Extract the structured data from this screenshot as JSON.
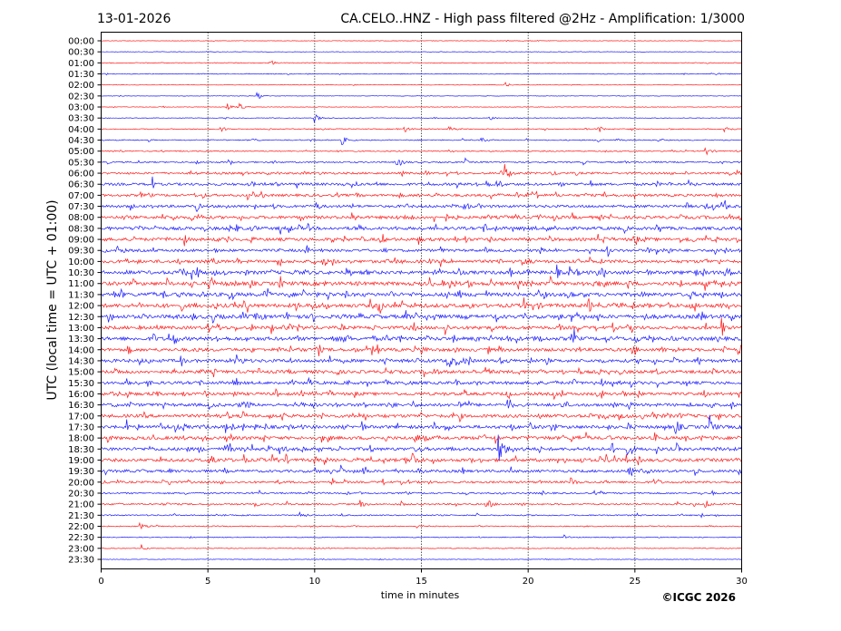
{
  "header": {
    "date": "13-01-2026",
    "title": "CA.CELO..HNZ - High pass filtered @2Hz - Amplification: 1/3000"
  },
  "footer": {
    "copyright": "©ICGC 2026"
  },
  "chart_data": {
    "type": "line",
    "title": "CA.CELO..HNZ - High pass filtered @2Hz - Amplification: 1/3000",
    "xlabel": "time in minutes",
    "ylabel": "UTC (local time = UTC + 01:00)",
    "xlim": [
      0,
      30
    ],
    "x_ticks": [
      "0",
      "5",
      "10",
      "15",
      "20",
      "25",
      "30"
    ],
    "grid": "vertical dotted at every 5 minutes",
    "colors": [
      "#ff0000",
      "#0000ff"
    ],
    "rows": [
      "00:00",
      "00:30",
      "01:00",
      "01:30",
      "02:00",
      "02:30",
      "03:00",
      "03:30",
      "04:00",
      "04:30",
      "05:00",
      "05:30",
      "06:00",
      "06:30",
      "07:00",
      "07:30",
      "08:00",
      "08:30",
      "09:00",
      "09:30",
      "10:00",
      "10:30",
      "11:00",
      "11:30",
      "12:00",
      "12:30",
      "13:00",
      "13:30",
      "14:00",
      "14:30",
      "15:00",
      "15:30",
      "16:00",
      "16:30",
      "17:00",
      "17:30",
      "18:00",
      "18:30",
      "19:00",
      "19:30",
      "20:00",
      "20:30",
      "21:00",
      "21:30",
      "22:00",
      "22:30",
      "23:00",
      "23:30"
    ],
    "relative_noise_level": [
      0.4,
      0.4,
      0.6,
      0.7,
      0.4,
      0.4,
      0.5,
      0.5,
      0.8,
      0.9,
      1.0,
      1.3,
      1.8,
      2.2,
      2.2,
      2.3,
      2.6,
      2.7,
      2.7,
      2.3,
      2.7,
      3.1,
      3.2,
      3.2,
      3.3,
      3.2,
      2.8,
      3.2,
      2.8,
      2.8,
      2.7,
      2.6,
      2.6,
      2.7,
      2.8,
      2.8,
      2.8,
      2.8,
      2.7,
      2.3,
      1.8,
      1.4,
      1.4,
      1.1,
      0.9,
      0.7,
      0.6,
      0.5
    ],
    "events": [
      [
        2,
        7.9,
        3
      ],
      [
        4,
        18.9,
        3
      ],
      [
        5,
        7.3,
        5
      ],
      [
        6,
        5.9,
        4
      ],
      [
        6,
        6.5,
        4
      ],
      [
        7,
        10,
        5
      ],
      [
        7,
        18.2,
        3
      ],
      [
        8,
        5.6,
        4
      ],
      [
        8,
        14.2,
        4
      ],
      [
        8,
        16.3,
        4
      ],
      [
        8,
        23.3,
        4
      ],
      [
        8,
        29.2,
        6
      ],
      [
        9,
        11.3,
        5
      ],
      [
        9,
        17.8,
        4
      ],
      [
        9,
        23.3,
        3
      ],
      [
        10,
        28.3,
        5
      ],
      [
        11,
        13.8,
        4
      ],
      [
        12,
        18.9,
        10
      ],
      [
        34,
        25.7,
        10
      ],
      [
        35,
        28.5,
        8
      ],
      [
        35,
        26.9,
        8
      ],
      [
        36,
        14.7,
        7
      ],
      [
        37,
        18.6,
        25
      ],
      [
        38,
        14.6,
        8
      ],
      [
        40,
        22.0,
        5
      ],
      [
        42,
        12.1,
        5
      ],
      [
        42,
        28.3,
        5
      ],
      [
        42,
        18.1,
        5
      ],
      [
        44,
        1.8,
        4
      ],
      [
        45,
        21.7,
        3
      ],
      [
        46,
        1.9,
        4
      ]
    ]
  }
}
